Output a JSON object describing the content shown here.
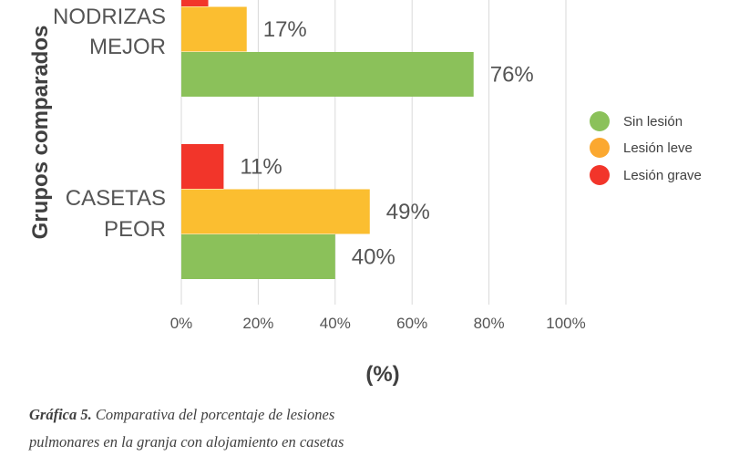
{
  "chart_data": {
    "type": "bar",
    "orientation": "horizontal",
    "categories": [
      {
        "lines": [
          "NODRIZAS",
          "MEJOR"
        ]
      },
      {
        "lines": [
          "CASETAS",
          "PEOR"
        ]
      }
    ],
    "series": [
      {
        "name": "Sin lesión",
        "color": "#8bc15a",
        "values": [
          76,
          40
        ]
      },
      {
        "name": "Lesión leve",
        "color": "#fbbe30",
        "values": [
          17,
          49
        ]
      },
      {
        "name": "Lesión grave",
        "color": "#f2352a",
        "values": [
          7,
          11
        ]
      }
    ],
    "data_labels": [
      {
        "series": 2,
        "category": 0,
        "text": ""
      },
      {
        "series": 1,
        "category": 0,
        "text": "17%"
      },
      {
        "series": 0,
        "category": 0,
        "text": "76%"
      },
      {
        "series": 2,
        "category": 1,
        "text": "11%"
      },
      {
        "series": 1,
        "category": 1,
        "text": "49%"
      },
      {
        "series": 0,
        "category": 1,
        "text": "40%"
      }
    ],
    "xlim": [
      0,
      100
    ],
    "xticks": [
      "0%",
      "20%",
      "40%",
      "60%",
      "80%",
      "100%"
    ],
    "xlabel": "(%)",
    "ylabel": "Grupos comparados",
    "grid": true,
    "legend_position": "right",
    "legend_colors": [
      "#8bc15a",
      "#fba830",
      "#f2352a"
    ]
  },
  "caption": {
    "label": "Gráfica 5.",
    "text": " Comparativa del porcentaje de lesiones pulmonares en la granja con alojamiento en casetas"
  }
}
